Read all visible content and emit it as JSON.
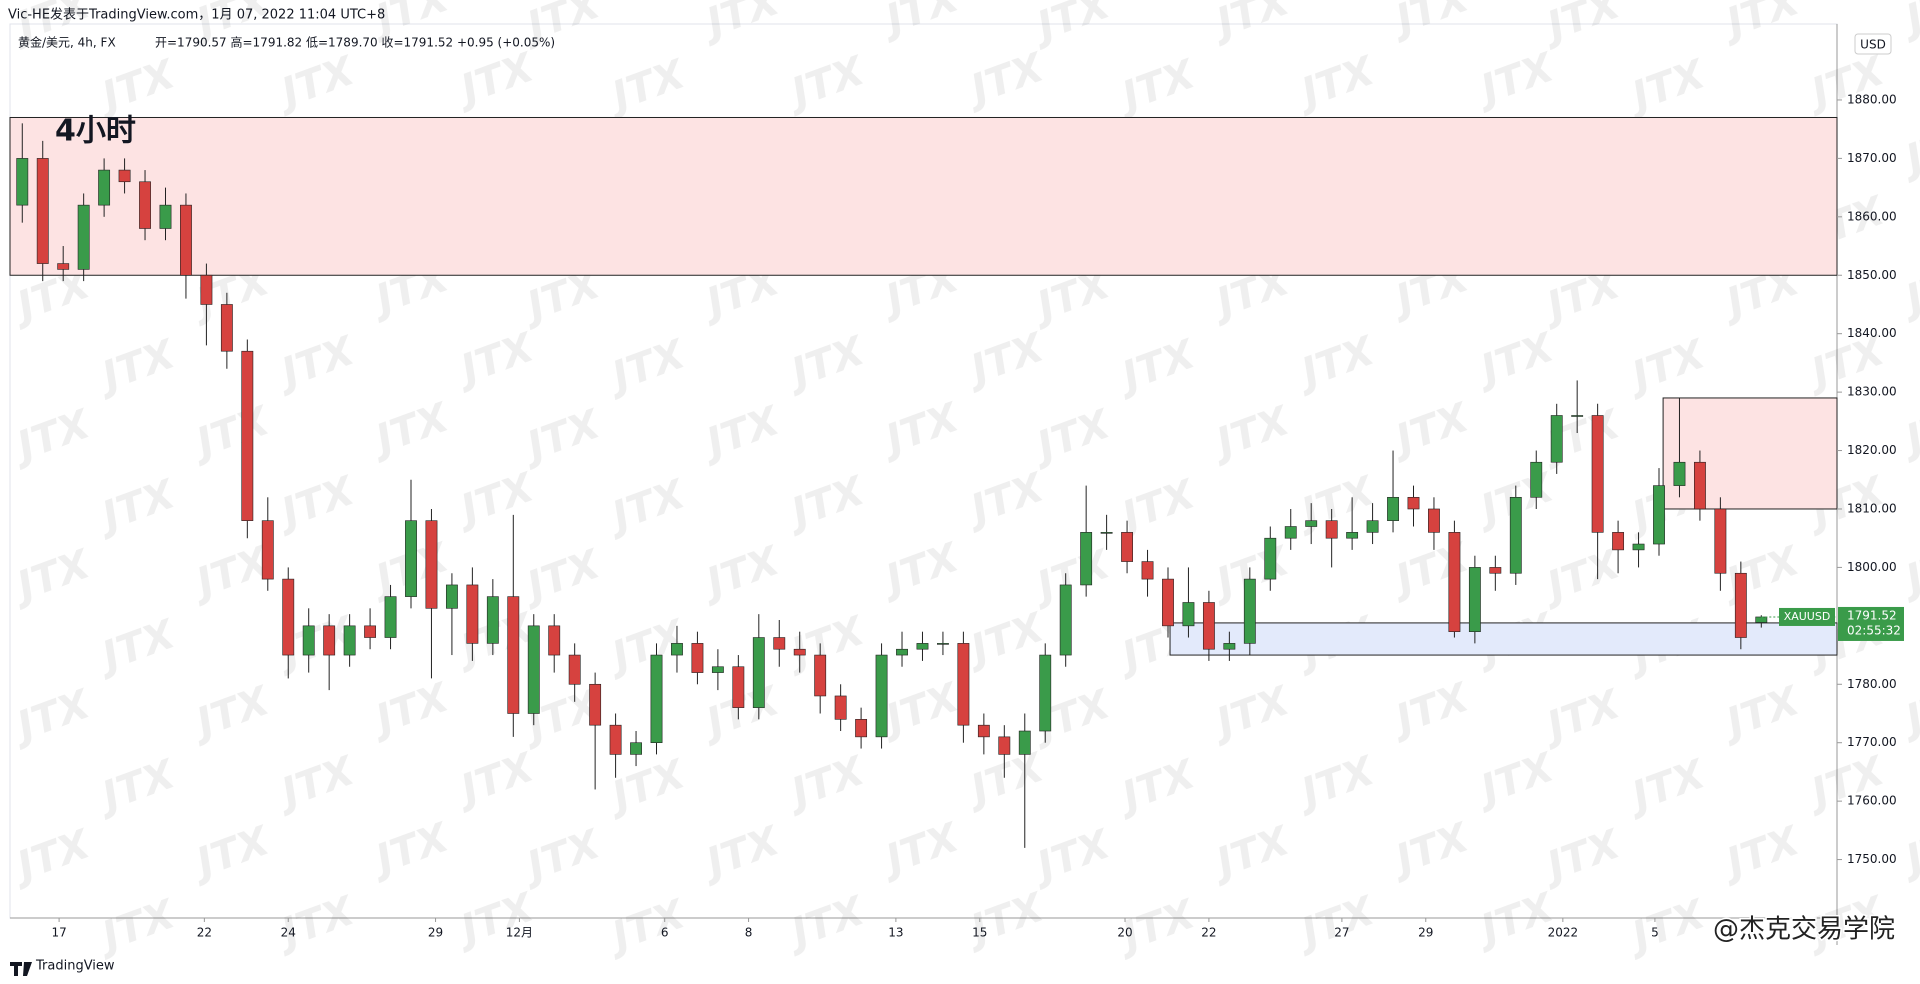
{
  "header": {
    "attribution": "Vic-HE发表于TradingView.com，1月 07, 2022 11:04 UTC+8",
    "symbol": "黄金/美元, 4h, FX",
    "ohlc": "开=1790.57 高=1791.82 低=1789.70 收=1791.52 +0.95 (+0.05%)"
  },
  "chart_data": {
    "type": "candlestick",
    "annotation": "4小时",
    "currency": "USD",
    "ticker": "XAUUSD",
    "countdown": "02:55:32",
    "watermark": "JTX",
    "credit": "@杰克交易学院",
    "brand": "TradingView",
    "up_color": "#3a9b4a",
    "down_color": "#d6423f",
    "grid": false,
    "xlim": [
      -0.6,
      88.7
    ],
    "ylim": [
      1740,
      1893
    ],
    "yticks": [
      {
        "value": 1750,
        "label": "1750.00"
      },
      {
        "value": 1760,
        "label": "1760.00"
      },
      {
        "value": 1770,
        "label": "1770.00"
      },
      {
        "value": 1780,
        "label": "1780.00"
      },
      {
        "value": 1790,
        "label": "1790.00"
      },
      {
        "value": 1800,
        "label": "1800.00"
      },
      {
        "value": 1810,
        "label": "1810.00"
      },
      {
        "value": 1820,
        "label": "1820.00"
      },
      {
        "value": 1830,
        "label": "1830.00"
      },
      {
        "value": 1840,
        "label": "1840.00"
      },
      {
        "value": 1850,
        "label": "1850.00"
      },
      {
        "value": 1860,
        "label": "1860.00"
      },
      {
        "value": 1870,
        "label": "1870.00"
      },
      {
        "value": 1880,
        "label": "1880.00"
      }
    ],
    "xticks": [
      {
        "value": 1.8,
        "label": "17"
      },
      {
        "value": 8.9,
        "label": "22"
      },
      {
        "value": 13,
        "label": "24"
      },
      {
        "value": 20.2,
        "label": "29"
      },
      {
        "value": 24.3,
        "label": "12月"
      },
      {
        "value": 31.4,
        "label": "6"
      },
      {
        "value": 35.5,
        "label": "8"
      },
      {
        "value": 42.7,
        "label": "13"
      },
      {
        "value": 46.8,
        "label": "15"
      },
      {
        "value": 53.9,
        "label": "20"
      },
      {
        "value": 58,
        "label": "22"
      },
      {
        "value": 64.5,
        "label": "27"
      },
      {
        "value": 68.6,
        "label": "29"
      },
      {
        "value": 75.3,
        "label": "2022"
      },
      {
        "value": 79.8,
        "label": "5"
      }
    ],
    "open": [
      1862,
      1870,
      1852,
      1851,
      1862,
      1868,
      1866,
      1858,
      1862,
      1850,
      1845,
      1837,
      1808,
      1798,
      1785,
      1790,
      1785,
      1790,
      1788,
      1795,
      1808,
      1793,
      1797,
      1787,
      1795,
      1775,
      1790,
      1785,
      1780,
      1773,
      1768,
      1770,
      1785,
      1787,
      1782,
      1783,
      1776,
      1788,
      1786,
      1785,
      1778,
      1774,
      1771,
      1785,
      1786,
      1787,
      1787,
      1773,
      1771,
      1768,
      1772,
      1785,
      1797,
      1806,
      1806,
      1801,
      1798,
      1790,
      1794,
      1786,
      1787,
      1798,
      1805,
      1807,
      1808,
      1805,
      1806,
      1808,
      1812,
      1810,
      1806,
      1789,
      1800,
      1799,
      1812,
      1818,
      1826,
      1826,
      1806,
      1803,
      1804,
      1814,
      1818,
      1810,
      1799,
      1790.57
    ],
    "high": [
      1876,
      1873,
      1855,
      1864,
      1870,
      1870,
      1868,
      1865,
      1864,
      1852,
      1847,
      1839,
      1812,
      1800,
      1793,
      1792,
      1792,
      1793,
      1797,
      1815,
      1810,
      1799,
      1800,
      1798,
      1809,
      1792,
      1792,
      1787,
      1782,
      1775,
      1772,
      1787,
      1790,
      1789,
      1786,
      1785,
      1792,
      1791,
      1789,
      1787,
      1780,
      1776,
      1787,
      1789,
      1789,
      1789,
      1789,
      1775,
      1773,
      1775,
      1787,
      1799,
      1814,
      1809,
      1808,
      1803,
      1800,
      1800,
      1796,
      1789,
      1800,
      1807,
      1810,
      1811,
      1810,
      1812,
      1811,
      1820,
      1814,
      1812,
      1808,
      1802,
      1802,
      1814,
      1820,
      1828,
      1832,
      1828,
      1808,
      1806,
      1817,
      1829,
      1820,
      1812,
      1801,
      1791.82
    ],
    "low": [
      1859,
      1849,
      1849,
      1849,
      1860,
      1864,
      1856,
      1856,
      1846,
      1838,
      1834,
      1805,
      1796,
      1781,
      1782,
      1779,
      1783,
      1786,
      1786,
      1793,
      1781,
      1785,
      1784,
      1785,
      1771,
      1773,
      1782,
      1777,
      1762,
      1764,
      1766,
      1768,
      1782,
      1780,
      1779,
      1774,
      1774,
      1783,
      1782,
      1775,
      1772,
      1769,
      1769,
      1783,
      1784,
      1785,
      1770,
      1768,
      1764,
      1752,
      1770,
      1783,
      1795,
      1803,
      1799,
      1795,
      1788,
      1788,
      1784,
      1784,
      1785,
      1796,
      1803,
      1804,
      1800,
      1803,
      1804,
      1806,
      1807,
      1803,
      1788,
      1787,
      1796,
      1797,
      1810,
      1816,
      1823,
      1798,
      1799,
      1800,
      1802,
      1812,
      1808,
      1796,
      1786,
      1789.7
    ],
    "close": [
      1870,
      1852,
      1851,
      1862,
      1868,
      1866,
      1858,
      1862,
      1850,
      1845,
      1837,
      1808,
      1798,
      1785,
      1790,
      1785,
      1790,
      1788,
      1795,
      1808,
      1793,
      1797,
      1787,
      1795,
      1775,
      1790,
      1785,
      1780,
      1773,
      1768,
      1770,
      1785,
      1787,
      1782,
      1783,
      1776,
      1788,
      1786,
      1785,
      1778,
      1774,
      1771,
      1785,
      1786,
      1787,
      1787,
      1773,
      1771,
      1768,
      1772,
      1785,
      1797,
      1806,
      1806,
      1801,
      1798,
      1790,
      1794,
      1786,
      1787,
      1798,
      1805,
      1807,
      1808,
      1805,
      1806,
      1808,
      1812,
      1810,
      1806,
      1789,
      1800,
      1799,
      1812,
      1818,
      1826,
      1826,
      1806,
      1803,
      1804,
      1814,
      1818,
      1810,
      1799,
      1788,
      1791.52
    ],
    "zones": [
      {
        "top": 1877,
        "bottom": 1850,
        "x_start": -0.6,
        "color": "#fde3e3"
      },
      {
        "top": 1829,
        "bottom": 1810,
        "x_start": 80.2,
        "color": "#fde3e3"
      },
      {
        "top": 1790.5,
        "bottom": 1785,
        "x_start": 56.1,
        "color": "#e3eafb"
      }
    ]
  }
}
